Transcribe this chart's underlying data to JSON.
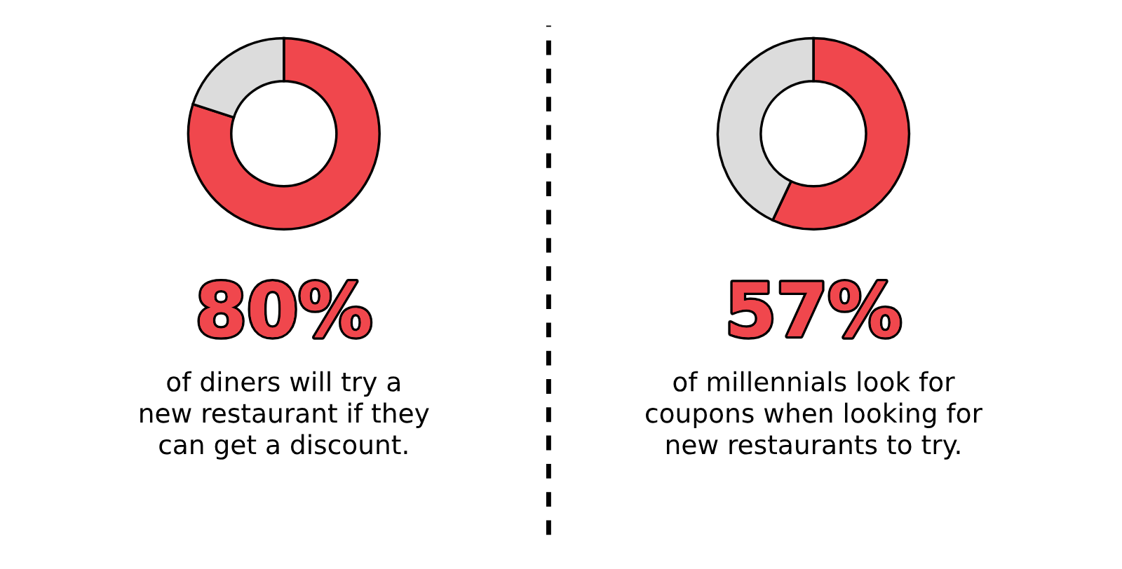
{
  "chart_data": [
    {
      "type": "donut",
      "categories": [
        null,
        null
      ],
      "values": [
        80,
        20
      ],
      "colors": [
        "#f0474d",
        "#dcdcdc"
      ],
      "value_labels": [
        "80%",
        null
      ],
      "title": "of diners will try a\nnew restaurant if they\ncan get a discount."
    },
    {
      "type": "donut",
      "categories": [
        null,
        null
      ],
      "values": [
        57,
        43
      ],
      "colors": [
        "#f0474d",
        "#dcdcdc"
      ],
      "value_labels": [
        "57%",
        null
      ],
      "title": "of millennials look for\ncoupons when looking for\nnew restaurants to try."
    }
  ]
}
